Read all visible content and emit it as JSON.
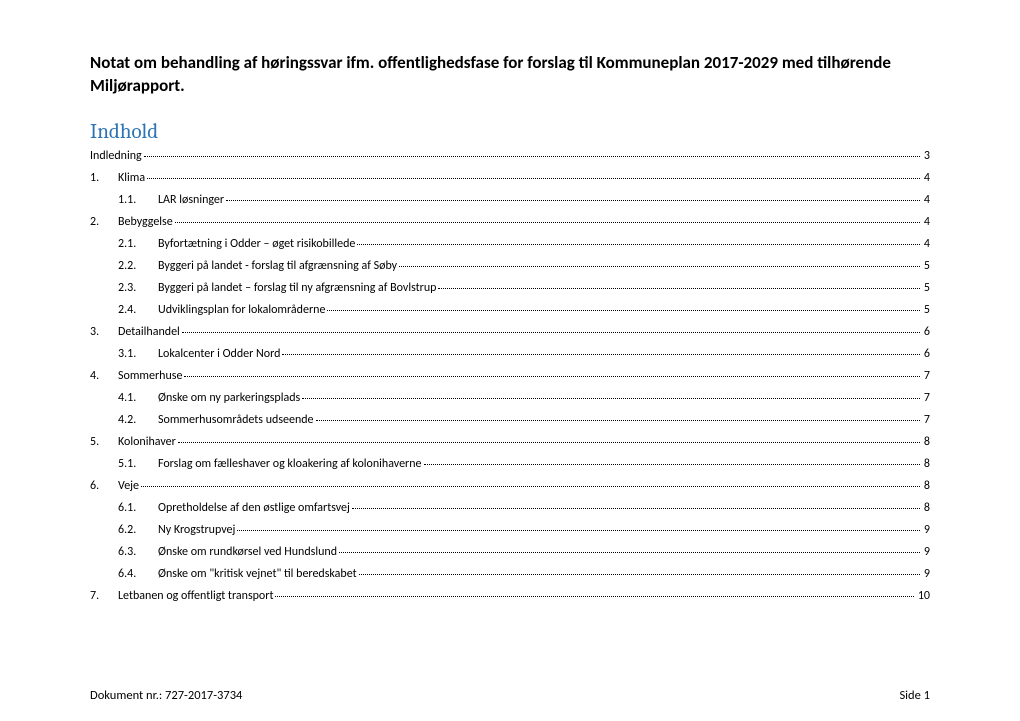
{
  "title": "Notat om behandling af høringssvar ifm. offentlighedsfase for forslag til Kommuneplan 2017-2029 med tilhørende Miljørapport.",
  "toc_heading": "Indhold",
  "toc": [
    {
      "level": 1,
      "num": "",
      "label": "Indledning",
      "page": "3"
    },
    {
      "level": 1,
      "num": "1.",
      "label": "Klima",
      "page": "4"
    },
    {
      "level": 2,
      "num": "1.1.",
      "label": "LAR løsninger",
      "page": "4"
    },
    {
      "level": 1,
      "num": "2.",
      "label": "Bebyggelse",
      "page": "4"
    },
    {
      "level": 2,
      "num": "2.1.",
      "label": "Byfortætning i Odder – øget risikobillede",
      "page": "4"
    },
    {
      "level": 2,
      "num": "2.2.",
      "label": "Byggeri på landet - forslag til afgrænsning af Søby",
      "page": "5"
    },
    {
      "level": 2,
      "num": "2.3.",
      "label": "Byggeri på landet – forslag til ny afgrænsning af Bovlstrup",
      "page": "5"
    },
    {
      "level": 2,
      "num": "2.4.",
      "label": "Udviklingsplan for lokalområderne",
      "page": "5"
    },
    {
      "level": 1,
      "num": "3.",
      "label": "Detailhandel",
      "page": "6"
    },
    {
      "level": 2,
      "num": "3.1.",
      "label": "Lokalcenter i Odder Nord",
      "page": "6"
    },
    {
      "level": 1,
      "num": "4.",
      "label": "Sommerhuse",
      "page": "7"
    },
    {
      "level": 2,
      "num": "4.1.",
      "label": "Ønske om ny parkeringsplads",
      "page": "7"
    },
    {
      "level": 2,
      "num": "4.2.",
      "label": "Sommerhusområdets udseende",
      "page": "7"
    },
    {
      "level": 1,
      "num": "5.",
      "label": "Kolonihaver",
      "page": "8"
    },
    {
      "level": 2,
      "num": "5.1.",
      "label": "Forslag om fælleshaver og kloakering af kolonihaverne",
      "page": "8"
    },
    {
      "level": 1,
      "num": "6.",
      "label": "Veje",
      "page": "8"
    },
    {
      "level": 2,
      "num": "6.1.",
      "label": "Opretholdelse af den østlige omfartsvej",
      "page": "8"
    },
    {
      "level": 2,
      "num": "6.2.",
      "label": "Ny Krogstrupvej",
      "page": "9"
    },
    {
      "level": 2,
      "num": "6.3.",
      "label": "Ønske om rundkørsel ved Hundslund",
      "page": "9"
    },
    {
      "level": 2,
      "num": "6.4.",
      "label": "Ønske om \"kritisk vejnet\" til beredskabet",
      "page": "9"
    },
    {
      "level": 1,
      "num": "7.",
      "label": "Letbanen og offentligt transport",
      "page": "10"
    }
  ],
  "footer": {
    "left": "Dokument nr.: 727-2017-3734",
    "right": "Side 1"
  }
}
